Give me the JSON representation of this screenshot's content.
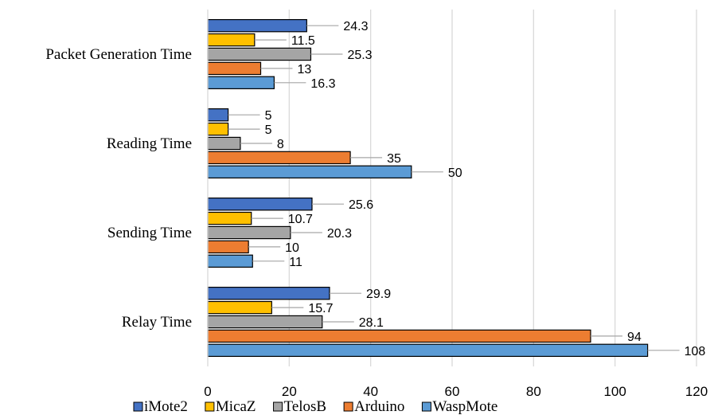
{
  "chart_data": {
    "type": "bar",
    "orientation": "horizontal",
    "categories": [
      "Packet Generation Time",
      "Reading Time",
      "Sending Time",
      "Relay Time"
    ],
    "series": [
      {
        "name": "iMote2",
        "values": [
          24.3,
          5,
          25.6,
          29.9
        ],
        "color": "#4472C4"
      },
      {
        "name": "MicaZ",
        "values": [
          11.5,
          5,
          10.7,
          15.7
        ],
        "color": "#FFC000"
      },
      {
        "name": "TelosB",
        "values": [
          25.3,
          8,
          20.3,
          28.1
        ],
        "color": "#A5A5A5"
      },
      {
        "name": "Arduino",
        "values": [
          13,
          35,
          10,
          94
        ],
        "color": "#ED7D31"
      },
      {
        "name": "WaspMote",
        "values": [
          16.3,
          50,
          11,
          108
        ],
        "color": "#5B9BD5"
      }
    ],
    "xlim": [
      0,
      120
    ],
    "xticks": [
      0,
      20,
      40,
      60,
      80,
      100,
      120
    ],
    "grid": "vertical",
    "legend_position": "bottom",
    "title": "",
    "xlabel": "",
    "ylabel": ""
  }
}
